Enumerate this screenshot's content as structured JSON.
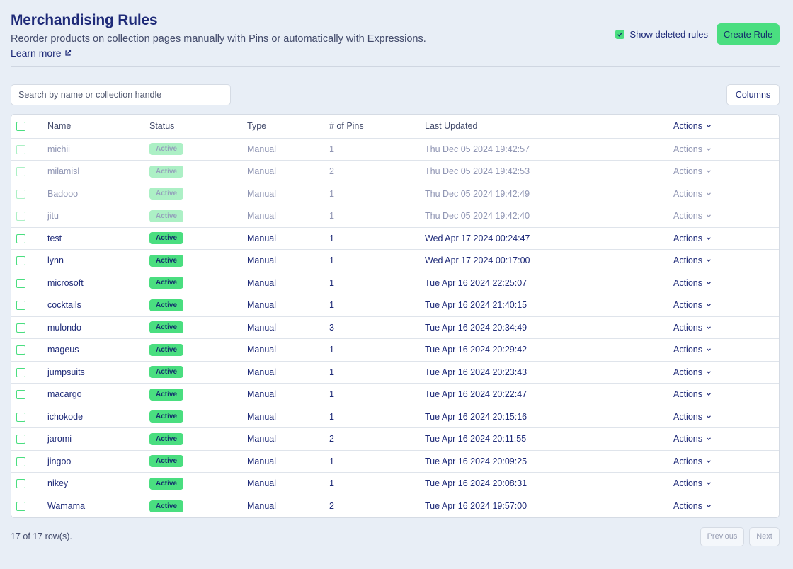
{
  "header": {
    "title": "Merchandising Rules",
    "subtitle": "Reorder products on collection pages manually with Pins or automatically with Expressions.",
    "learn_more": "Learn more",
    "show_deleted_label": "Show deleted rules",
    "show_deleted_checked": true,
    "create_button": "Create Rule"
  },
  "toolbar": {
    "search_placeholder": "Search by name or collection handle",
    "search_value": "",
    "columns_button": "Columns"
  },
  "table": {
    "columns": [
      "Name",
      "Status",
      "Type",
      "# of Pins",
      "Last Updated",
      "Actions"
    ],
    "rows": [
      {
        "name": "michii",
        "status": "Active",
        "type": "Manual",
        "pins": "1",
        "updated": "Thu Dec 05 2024 19:42:57",
        "actions": "Actions",
        "deleted": true
      },
      {
        "name": "milamisl",
        "status": "Active",
        "type": "Manual",
        "pins": "2",
        "updated": "Thu Dec 05 2024 19:42:53",
        "actions": "Actions",
        "deleted": true
      },
      {
        "name": "Badooo",
        "status": "Active",
        "type": "Manual",
        "pins": "1",
        "updated": "Thu Dec 05 2024 19:42:49",
        "actions": "Actions",
        "deleted": true
      },
      {
        "name": "jitu",
        "status": "Active",
        "type": "Manual",
        "pins": "1",
        "updated": "Thu Dec 05 2024 19:42:40",
        "actions": "Actions",
        "deleted": true
      },
      {
        "name": "test",
        "status": "Active",
        "type": "Manual",
        "pins": "1",
        "updated": "Wed Apr 17 2024 00:24:47",
        "actions": "Actions",
        "deleted": false
      },
      {
        "name": "lynn",
        "status": "Active",
        "type": "Manual",
        "pins": "1",
        "updated": "Wed Apr 17 2024 00:17:00",
        "actions": "Actions",
        "deleted": false
      },
      {
        "name": "microsoft",
        "status": "Active",
        "type": "Manual",
        "pins": "1",
        "updated": "Tue Apr 16 2024 22:25:07",
        "actions": "Actions",
        "deleted": false
      },
      {
        "name": "cocktails",
        "status": "Active",
        "type": "Manual",
        "pins": "1",
        "updated": "Tue Apr 16 2024 21:40:15",
        "actions": "Actions",
        "deleted": false
      },
      {
        "name": "mulondo",
        "status": "Active",
        "type": "Manual",
        "pins": "3",
        "updated": "Tue Apr 16 2024 20:34:49",
        "actions": "Actions",
        "deleted": false
      },
      {
        "name": "mageus",
        "status": "Active",
        "type": "Manual",
        "pins": "1",
        "updated": "Tue Apr 16 2024 20:29:42",
        "actions": "Actions",
        "deleted": false
      },
      {
        "name": "jumpsuits",
        "status": "Active",
        "type": "Manual",
        "pins": "1",
        "updated": "Tue Apr 16 2024 20:23:43",
        "actions": "Actions",
        "deleted": false
      },
      {
        "name": "macargo",
        "status": "Active",
        "type": "Manual",
        "pins": "1",
        "updated": "Tue Apr 16 2024 20:22:47",
        "actions": "Actions",
        "deleted": false
      },
      {
        "name": "ichokode",
        "status": "Active",
        "type": "Manual",
        "pins": "1",
        "updated": "Tue Apr 16 2024 20:15:16",
        "actions": "Actions",
        "deleted": false
      },
      {
        "name": "jaromi",
        "status": "Active",
        "type": "Manual",
        "pins": "2",
        "updated": "Tue Apr 16 2024 20:11:55",
        "actions": "Actions",
        "deleted": false
      },
      {
        "name": "jingoo",
        "status": "Active",
        "type": "Manual",
        "pins": "1",
        "updated": "Tue Apr 16 2024 20:09:25",
        "actions": "Actions",
        "deleted": false
      },
      {
        "name": "nikey",
        "status": "Active",
        "type": "Manual",
        "pins": "1",
        "updated": "Tue Apr 16 2024 20:08:31",
        "actions": "Actions",
        "deleted": false
      },
      {
        "name": "Wamama",
        "status": "Active",
        "type": "Manual",
        "pins": "2",
        "updated": "Tue Apr 16 2024 19:57:00",
        "actions": "Actions",
        "deleted": false
      }
    ]
  },
  "footer": {
    "row_count": "17 of 17 row(s).",
    "previous": "Previous",
    "next": "Next"
  },
  "colors": {
    "background": "#e8eef6",
    "accent_green": "#4ade80",
    "text_navy": "#1e2a78",
    "muted_text": "#8f95b3"
  },
  "icons": {
    "learn_more": "external-link-icon",
    "actions": "chevron-down-icon",
    "checkbox": "check-icon"
  }
}
